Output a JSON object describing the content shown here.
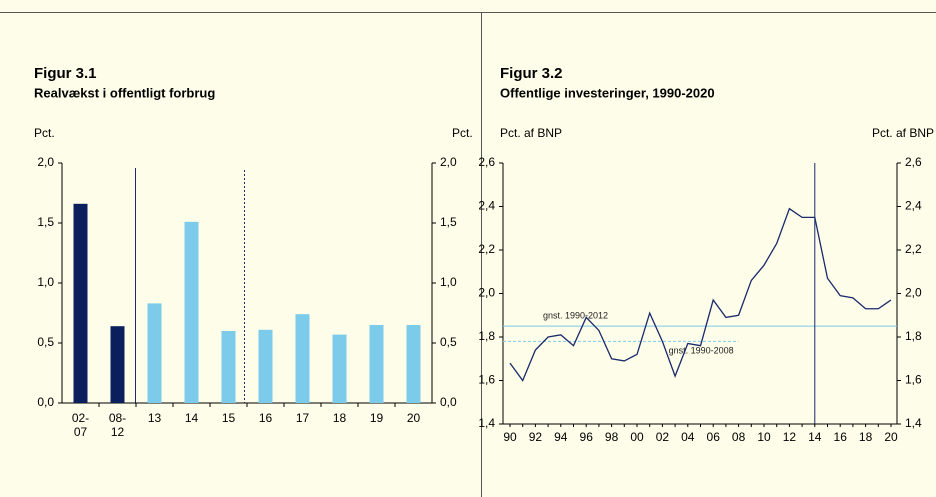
{
  "chart_data": [
    {
      "type": "bar",
      "title": "Figur 3.1",
      "subtitle": "Realvækst i offentligt forbrug",
      "y_label": "Pct.",
      "y2_label": "Pct.",
      "categories": [
        "02-07",
        "08-12",
        "13",
        "14",
        "15",
        "16",
        "17",
        "18",
        "19",
        "20"
      ],
      "values": [
        1.66,
        0.64,
        0.83,
        1.51,
        0.6,
        0.61,
        0.74,
        0.57,
        0.65,
        0.65
      ],
      "colors": [
        "#0b1f5c",
        "#0b1f5c",
        "#7ccbea",
        "#7ccbea",
        "#7ccbea",
        "#7ccbea",
        "#7ccbea",
        "#7ccbea",
        "#7ccbea",
        "#7ccbea"
      ],
      "ylim": [
        0,
        2
      ],
      "yticks": [
        {
          "value": 0,
          "label": "0,0"
        },
        {
          "value": 0.5,
          "label": "0,5"
        },
        {
          "value": 1,
          "label": "1,0"
        },
        {
          "value": 1.5,
          "label": "1,5"
        },
        {
          "value": 2,
          "label": "2,0"
        }
      ]
    },
    {
      "type": "line",
      "title": "Figur 3.2",
      "subtitle": "Offentlige investeringer, 1990-2020",
      "y_label": "Pct. af BNP",
      "y2_label": "Pct. af BNP",
      "categories": [
        "90",
        null,
        "92",
        null,
        "94",
        null,
        "96",
        null,
        "98",
        null,
        "00",
        null,
        "02",
        null,
        "04",
        null,
        "06",
        null,
        "08",
        null,
        "10",
        null,
        "12",
        null,
        "14",
        null,
        "16",
        null,
        "18",
        null,
        "20"
      ],
      "series": [
        {
          "color": "#1a2a6c",
          "values": [
            1.68,
            1.6,
            1.74,
            1.8,
            1.81,
            1.76,
            1.89,
            1.83,
            1.7,
            1.69,
            1.72,
            1.91,
            1.78,
            1.62,
            1.77,
            1.76,
            1.97,
            1.89,
            1.9,
            2.06,
            2.13,
            2.23,
            2.39,
            2.35,
            2.35,
            2.07,
            1.99,
            1.98,
            1.93,
            1.93,
            1.97
          ]
        }
      ],
      "reference_lines": [
        {
          "label": "gnst. 1990-2012",
          "value": 1.85,
          "color": "#7ccbea",
          "style": "solid"
        },
        {
          "label": "gnst. 1990-2008",
          "value": 1.78,
          "color": "#7ccbea",
          "style": "dashed",
          "x_end": "08"
        }
      ],
      "vline_at": "14",
      "ylim": [
        1.4,
        2.6
      ],
      "yticks": [
        {
          "value": 1.4,
          "label": "1,4"
        },
        {
          "value": 1.6,
          "label": "1,6"
        },
        {
          "value": 1.8,
          "label": "1,8"
        },
        {
          "value": 2,
          "label": "2,0"
        },
        {
          "value": 2.2,
          "label": "2,2"
        },
        {
          "value": 2.4,
          "label": "2,4"
        },
        {
          "value": 2.6,
          "label": "2,6"
        }
      ]
    }
  ]
}
